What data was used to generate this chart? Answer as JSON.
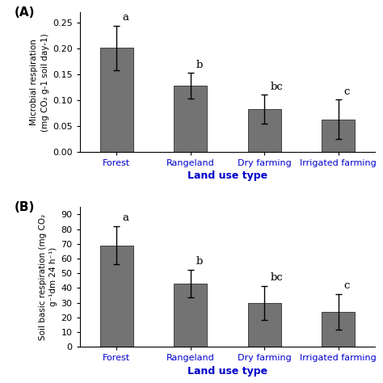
{
  "categories": [
    "Forest",
    "Rangeland",
    "Dry farming",
    "Irrigated farming"
  ],
  "panel_A": {
    "label": "(A)",
    "values": [
      0.201,
      0.128,
      0.083,
      0.063
    ],
    "errors": [
      0.043,
      0.025,
      0.028,
      0.038
    ],
    "sig_labels": [
      "a",
      "b",
      "bc",
      "c"
    ],
    "ylabel": "Microbial respiration\n(mg CO₂ g-1 soil day-1)",
    "ylim": [
      0,
      0.27
    ],
    "yticks": [
      0.0,
      0.05,
      0.1,
      0.15,
      0.2,
      0.25
    ],
    "sig_offsets": [
      0.005,
      0.005,
      0.005,
      0.005
    ]
  },
  "panel_B": {
    "label": "(B)",
    "values": [
      69.0,
      43.0,
      30.0,
      24.0
    ],
    "errors": [
      13.0,
      9.5,
      11.5,
      12.0
    ],
    "sig_labels": [
      "a",
      "b",
      "bc",
      "c"
    ],
    "ylabel": "Soil basic respiration (mg CO₂\ng⁻¹dm 24 h⁻¹)",
    "ylim": [
      0,
      95
    ],
    "yticks": [
      0,
      10,
      20,
      30,
      40,
      50,
      60,
      70,
      80,
      90
    ],
    "sig_offsets": [
      2,
      2,
      2,
      2
    ]
  },
  "xlabel": "Land use type",
  "bar_color": "#737373",
  "bar_edgecolor": "#404040",
  "sig_color": "#000000",
  "xtick_color": "#0000CC",
  "xlabel_color": "#0000CC",
  "background_color": "#ffffff",
  "bar_width": 0.45
}
